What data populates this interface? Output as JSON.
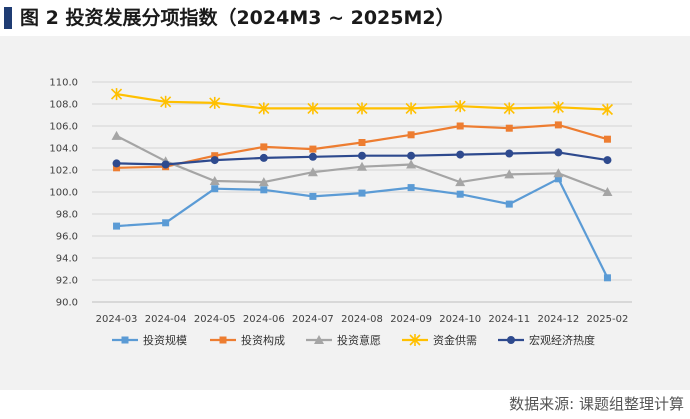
{
  "title": "图 2  投资发展分项指数（2024M3 ~ 2025M2）",
  "source": "数据来源: 课题组整理计算",
  "chart_data": {
    "type": "line",
    "categories": [
      "2024-03",
      "2024-04",
      "2024-05",
      "2024-06",
      "2024-07",
      "2024-08",
      "2024-09",
      "2024-10",
      "2024-11",
      "2024-12",
      "2025-02"
    ],
    "ylim": [
      90.0,
      110.0
    ],
    "ytick_step": 2.0,
    "yticks": [
      "90.0",
      "92.0",
      "94.0",
      "96.0",
      "98.0",
      "100.0",
      "102.0",
      "104.0",
      "106.0",
      "108.0",
      "110.0"
    ],
    "grid": true,
    "legend": "bottom",
    "series": [
      {
        "name": "投资规模",
        "color": "#5b9bd5",
        "marker": "square",
        "values": [
          96.9,
          97.2,
          100.3,
          100.2,
          99.6,
          99.9,
          100.4,
          99.8,
          98.9,
          101.2,
          92.2
        ]
      },
      {
        "name": "投资构成",
        "color": "#ed7d31",
        "marker": "square",
        "values": [
          102.2,
          102.3,
          103.3,
          104.1,
          103.9,
          104.5,
          105.2,
          106.0,
          105.8,
          106.1,
          104.8
        ]
      },
      {
        "name": "投资意愿",
        "color": "#a5a5a5",
        "marker": "triangle",
        "values": [
          105.1,
          102.8,
          101.0,
          100.9,
          101.8,
          102.3,
          102.5,
          100.9,
          101.6,
          101.7,
          100.0
        ]
      },
      {
        "name": "资金供需",
        "color": "#ffc000",
        "marker": "star",
        "values": [
          108.9,
          108.2,
          108.1,
          107.6,
          107.6,
          107.6,
          107.6,
          107.8,
          107.6,
          107.7,
          107.5
        ]
      },
      {
        "name": "宏观经济热度",
        "color": "#2e4a8e",
        "marker": "circle",
        "values": [
          102.6,
          102.5,
          102.9,
          103.1,
          103.2,
          103.3,
          103.3,
          103.4,
          103.5,
          103.6,
          102.9
        ]
      }
    ]
  }
}
